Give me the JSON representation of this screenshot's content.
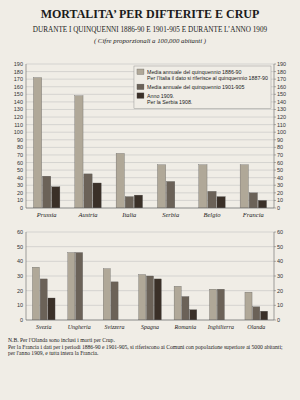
{
  "chart_data": [
    {
      "type": "bar",
      "title": "MORTALITA’ PER DIFTERITE E CRUP",
      "subtitle": "DURANTE I QUINQUENNI 1886-90 E 1901-905 E DURANTE L’ANNO 1909",
      "annotations": [
        "( Cifre proporzionali a 100,000 abitanti )"
      ],
      "categories": [
        "Prussia",
        "Austria",
        "Italia",
        "Serbia",
        "Belgio",
        "Francia"
      ],
      "series": [
        {
          "name": "Media annuale del quinquennio 1886-90\nPer l’Italia il dato si riferisce al quinquennio 1887-90",
          "color": "#b0a898",
          "values": [
            172,
            148,
            72,
            57,
            57,
            57
          ]
        },
        {
          "name": "Media annuale del quinquennio 1901-905",
          "color": "#6b6258",
          "values": [
            42,
            45,
            15,
            35,
            22,
            20
          ]
        },
        {
          "name": "Anno 1909.\nPer la Serbia 1908.",
          "color": "#3a3028",
          "values": [
            28,
            33,
            17,
            null,
            15,
            10
          ]
        }
      ],
      "ylim": [
        0,
        190
      ],
      "yticks": [
        0,
        10,
        20,
        30,
        40,
        50,
        60,
        70,
        80,
        90,
        100,
        110,
        120,
        130,
        140,
        150,
        160,
        170,
        180,
        190
      ],
      "y2lim": [
        0,
        190
      ],
      "y2ticks": [
        0,
        10,
        20,
        30,
        40,
        50,
        60,
        70,
        80,
        90,
        100,
        110,
        120,
        130,
        140,
        150,
        160,
        170,
        180,
        190
      ],
      "grid": true,
      "legend": "upper right"
    },
    {
      "type": "bar",
      "annotations": [
        "N.B. Per l'Olanda sono inclusi i morti per Crup.\nPer la Francia i dati per i periodi 1886-90 e 1901-905, si riferiscono ai Comuni con popolazione superiore ai 5000 abitanti;\nper l'anno 1909, e tutta intera la Francia."
      ],
      "categories": [
        "Svezia",
        "Ungheria",
        "Svizzera",
        "Spagna",
        "Romania",
        "Inghilterra",
        "Olanda"
      ],
      "series": [
        {
          "color": "#b0a898",
          "values": [
            36,
            46,
            35,
            31,
            23,
            21,
            19
          ]
        },
        {
          "color": "#6b6258",
          "values": [
            28,
            46,
            26,
            30,
            16,
            21,
            9
          ]
        },
        {
          "color": "#3a3028",
          "values": [
            15,
            null,
            null,
            28,
            7,
            null,
            6
          ]
        }
      ],
      "ylim": [
        0,
        60
      ],
      "yticks": [
        0,
        10,
        20,
        30,
        40,
        50,
        60
      ],
      "y2lim": [
        0,
        60
      ],
      "y2ticks": [
        0,
        10,
        20,
        30,
        40,
        50,
        60
      ],
      "grid": true
    }
  ]
}
